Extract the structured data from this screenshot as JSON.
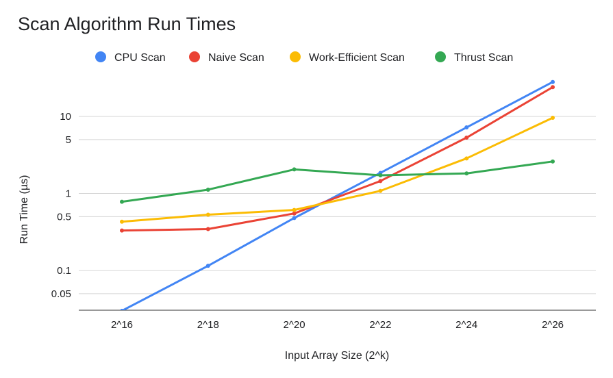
{
  "chart_data": {
    "type": "line",
    "title": "Scan Algorithm Run Times",
    "xlabel": "Input Array Size (2^k)",
    "ylabel": "Run Time (µs)",
    "y_scale": "log",
    "ylim": [
      0.03,
      30
    ],
    "legend_position": "top",
    "grid": true,
    "categories": [
      "2^16",
      "2^18",
      "2^20",
      "2^22",
      "2^24",
      "2^26"
    ],
    "y_ticks": [
      {
        "value": 0.05,
        "label": "0.05"
      },
      {
        "value": 0.1,
        "label": "0.1"
      },
      {
        "value": 0.5,
        "label": "0.5"
      },
      {
        "value": 1,
        "label": "1"
      },
      {
        "value": 5,
        "label": "5"
      },
      {
        "value": 10,
        "label": "10"
      }
    ],
    "series": [
      {
        "name": "CPU Scan",
        "color": "#4285F4",
        "values": [
          0.03,
          0.115,
          0.48,
          1.85,
          7.2,
          28
        ]
      },
      {
        "name": "Naive Scan",
        "color": "#EA4335",
        "values": [
          0.33,
          0.345,
          0.55,
          1.45,
          5.3,
          24
        ]
      },
      {
        "name": "Work-Efficient Scan",
        "color": "#FBBC04",
        "values": [
          0.43,
          0.53,
          0.61,
          1.08,
          2.85,
          9.6
        ]
      },
      {
        "name": "Thrust Scan",
        "color": "#34A853",
        "values": [
          0.78,
          1.12,
          2.05,
          1.72,
          1.82,
          2.6
        ]
      }
    ]
  }
}
